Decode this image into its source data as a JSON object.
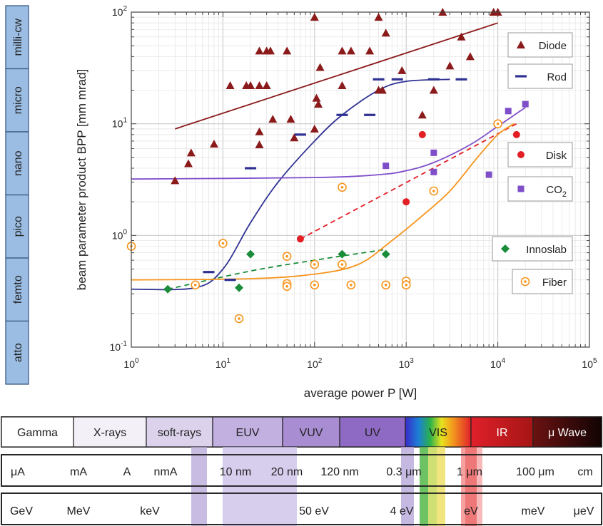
{
  "chart_data": {
    "type": "scatter",
    "xlabel": "average power P [W]",
    "ylabel": "beam parameter product  BPP [mm mrad]",
    "xscale": "log",
    "yscale": "log",
    "xlim": [
      1,
      100000
    ],
    "ylim": [
      0.1,
      100
    ],
    "x_ticks": [
      {
        "value": 1,
        "base": "10",
        "exp": "0"
      },
      {
        "value": 10,
        "base": "10",
        "exp": "1"
      },
      {
        "value": 100,
        "base": "10",
        "exp": "2"
      },
      {
        "value": 1000,
        "base": "10",
        "exp": "3"
      },
      {
        "value": 10000,
        "base": "10",
        "exp": "4"
      },
      {
        "value": 100000,
        "base": "10",
        "exp": "5"
      }
    ],
    "y_ticks": [
      {
        "value": 0.1,
        "base": "10",
        "exp": "-1"
      },
      {
        "value": 1,
        "base": "10",
        "exp": "0"
      },
      {
        "value": 10,
        "base": "10",
        "exp": "1"
      },
      {
        "value": 100,
        "base": "10",
        "exp": "2"
      }
    ],
    "grid": true,
    "legend_placement": "right",
    "regimes": [
      "milli-cw",
      "micro",
      "nano",
      "pico",
      "femto",
      "atto"
    ],
    "series": [
      {
        "name": "Diode",
        "marker": "triangle",
        "color": "#8b1a1a",
        "points": [
          [
            3,
            3.1
          ],
          [
            4.2,
            4.4
          ],
          [
            4.5,
            5.5
          ],
          [
            8,
            6.6
          ],
          [
            12,
            22
          ],
          [
            18,
            22
          ],
          [
            20,
            22
          ],
          [
            25,
            22
          ],
          [
            30,
            22
          ],
          [
            25,
            45
          ],
          [
            30,
            45
          ],
          [
            33,
            45
          ],
          [
            25,
            8.5
          ],
          [
            25,
            6.5
          ],
          [
            35,
            11
          ],
          [
            55,
            11
          ],
          [
            60,
            7.5
          ],
          [
            50,
            45
          ],
          [
            100,
            9
          ],
          [
            100,
            90
          ],
          [
            105,
            17
          ],
          [
            110,
            15
          ],
          [
            115,
            32
          ],
          [
            200,
            45
          ],
          [
            250,
            45
          ],
          [
            400,
            45
          ],
          [
            200,
            22
          ],
          [
            500,
            90
          ],
          [
            500,
            20
          ],
          [
            550,
            20
          ],
          [
            600,
            65
          ],
          [
            900,
            30
          ],
          [
            1500,
            12
          ],
          [
            2000,
            20
          ],
          [
            2500,
            100
          ],
          [
            3000,
            33
          ],
          [
            4000,
            60
          ],
          [
            5000,
            40
          ],
          [
            9000,
            100
          ],
          [
            10000,
            100
          ]
        ],
        "trend": {
          "style": "solid",
          "points": [
            [
              3,
              9
            ],
            [
              10000,
              80
            ]
          ]
        }
      },
      {
        "name": "Rod",
        "marker": "dash",
        "color": "#2e3192",
        "points": [
          [
            7,
            0.47
          ],
          [
            12,
            0.4
          ],
          [
            20,
            4
          ],
          [
            70,
            8
          ],
          [
            200,
            12
          ],
          [
            400,
            12
          ],
          [
            500,
            25
          ],
          [
            800,
            25
          ],
          [
            2000,
            25
          ],
          [
            4000,
            25
          ]
        ],
        "trend": {
          "style": "solid",
          "points": [
            [
              1,
              0.33
            ],
            [
              5,
              0.34
            ],
            [
              10,
              0.5
            ],
            [
              20,
              1.3
            ],
            [
              40,
              3
            ],
            [
              100,
              7
            ],
            [
              200,
              12
            ],
            [
              500,
              20
            ],
            [
              1000,
              24
            ],
            [
              3000,
              25
            ]
          ]
        }
      },
      {
        "name": "Disk",
        "marker": "circle",
        "color": "#e31e24",
        "points": [
          [
            70,
            0.93
          ],
          [
            1000,
            2
          ],
          [
            1500,
            8
          ],
          [
            16000,
            8
          ]
        ],
        "trend": {
          "style": "dashed",
          "points": [
            [
              70,
              0.93
            ],
            [
              16000,
              10
            ]
          ]
        }
      },
      {
        "name": "CO2",
        "name_main": "CO",
        "name_sub": "2",
        "marker": "square",
        "color": "#7f4fc9",
        "points": [
          [
            600,
            4.2
          ],
          [
            2000,
            5.5
          ],
          [
            2000,
            3.7
          ],
          [
            8000,
            3.5
          ],
          [
            13000,
            13
          ],
          [
            20000,
            15
          ]
        ],
        "trend": {
          "style": "solid",
          "points": [
            [
              1,
              3.2
            ],
            [
              100,
              3.3
            ],
            [
              500,
              3.5
            ],
            [
              1000,
              3.8
            ],
            [
              2000,
              4.5
            ],
            [
              5000,
              6.5
            ],
            [
              10000,
              9.5
            ],
            [
              20000,
              14
            ]
          ]
        }
      },
      {
        "name": "Innoslab",
        "marker": "diamond",
        "color": "#1a8c3a",
        "points": [
          [
            2.5,
            0.33
          ],
          [
            15,
            0.34
          ],
          [
            20,
            0.68
          ],
          [
            200,
            0.68
          ],
          [
            600,
            0.68
          ]
        ],
        "trend": {
          "style": "dashed",
          "points": [
            [
              2.5,
              0.33
            ],
            [
              20,
              0.48
            ],
            [
              100,
              0.6
            ],
            [
              600,
              0.75
            ]
          ]
        }
      },
      {
        "name": "Fiber",
        "marker": "open-circle",
        "color": "#f7941d",
        "points": [
          [
            1,
            0.8
          ],
          [
            5,
            0.36
          ],
          [
            10,
            0.85
          ],
          [
            15,
            0.18
          ],
          [
            50,
            0.65
          ],
          [
            50,
            0.37
          ],
          [
            50,
            0.35
          ],
          [
            100,
            0.55
          ],
          [
            100,
            0.36
          ],
          [
            200,
            2.7
          ],
          [
            200,
            0.55
          ],
          [
            250,
            0.36
          ],
          [
            600,
            0.36
          ],
          [
            1000,
            0.39
          ],
          [
            1000,
            0.36
          ],
          [
            2000,
            2.5
          ],
          [
            10000,
            10
          ]
        ],
        "trend": {
          "style": "solid",
          "points": [
            [
              1,
              0.4
            ],
            [
              20,
              0.41
            ],
            [
              100,
              0.45
            ],
            [
              300,
              0.55
            ],
            [
              700,
              0.9
            ],
            [
              1500,
              1.5
            ],
            [
              3000,
              2.5
            ],
            [
              6000,
              5
            ],
            [
              10000,
              8
            ],
            [
              15000,
              10
            ]
          ]
        }
      }
    ]
  },
  "spectrum": {
    "row1": [
      {
        "label": "Gamma",
        "color": "#ffffff"
      },
      {
        "label": "X-rays",
        "color": "#f3f0f8"
      },
      {
        "label": "soft-rays",
        "color": "#dcd2ec"
      },
      {
        "label": "EUV",
        "color": "#c2b0e0"
      },
      {
        "label": "VUV",
        "color": "#a98dd2"
      },
      {
        "label": "UV",
        "color": "#8f6ac4"
      },
      {
        "label": "VIS",
        "color": "#ffffff"
      },
      {
        "label": "IR",
        "color": "#d42020"
      },
      {
        "label": "μ Wave",
        "color": "#2b0a0a"
      }
    ],
    "row2": [
      "μA",
      "mA",
      "A",
      "nmA",
      "10 nm",
      "20 nm",
      "120 nm",
      "0.3 μm",
      "1 μm",
      "100 μm",
      "cm"
    ],
    "row3": [
      "GeV",
      "MeV",
      "keV",
      "50 eV",
      "4 eV",
      "eV",
      "meV",
      "μeV"
    ]
  }
}
